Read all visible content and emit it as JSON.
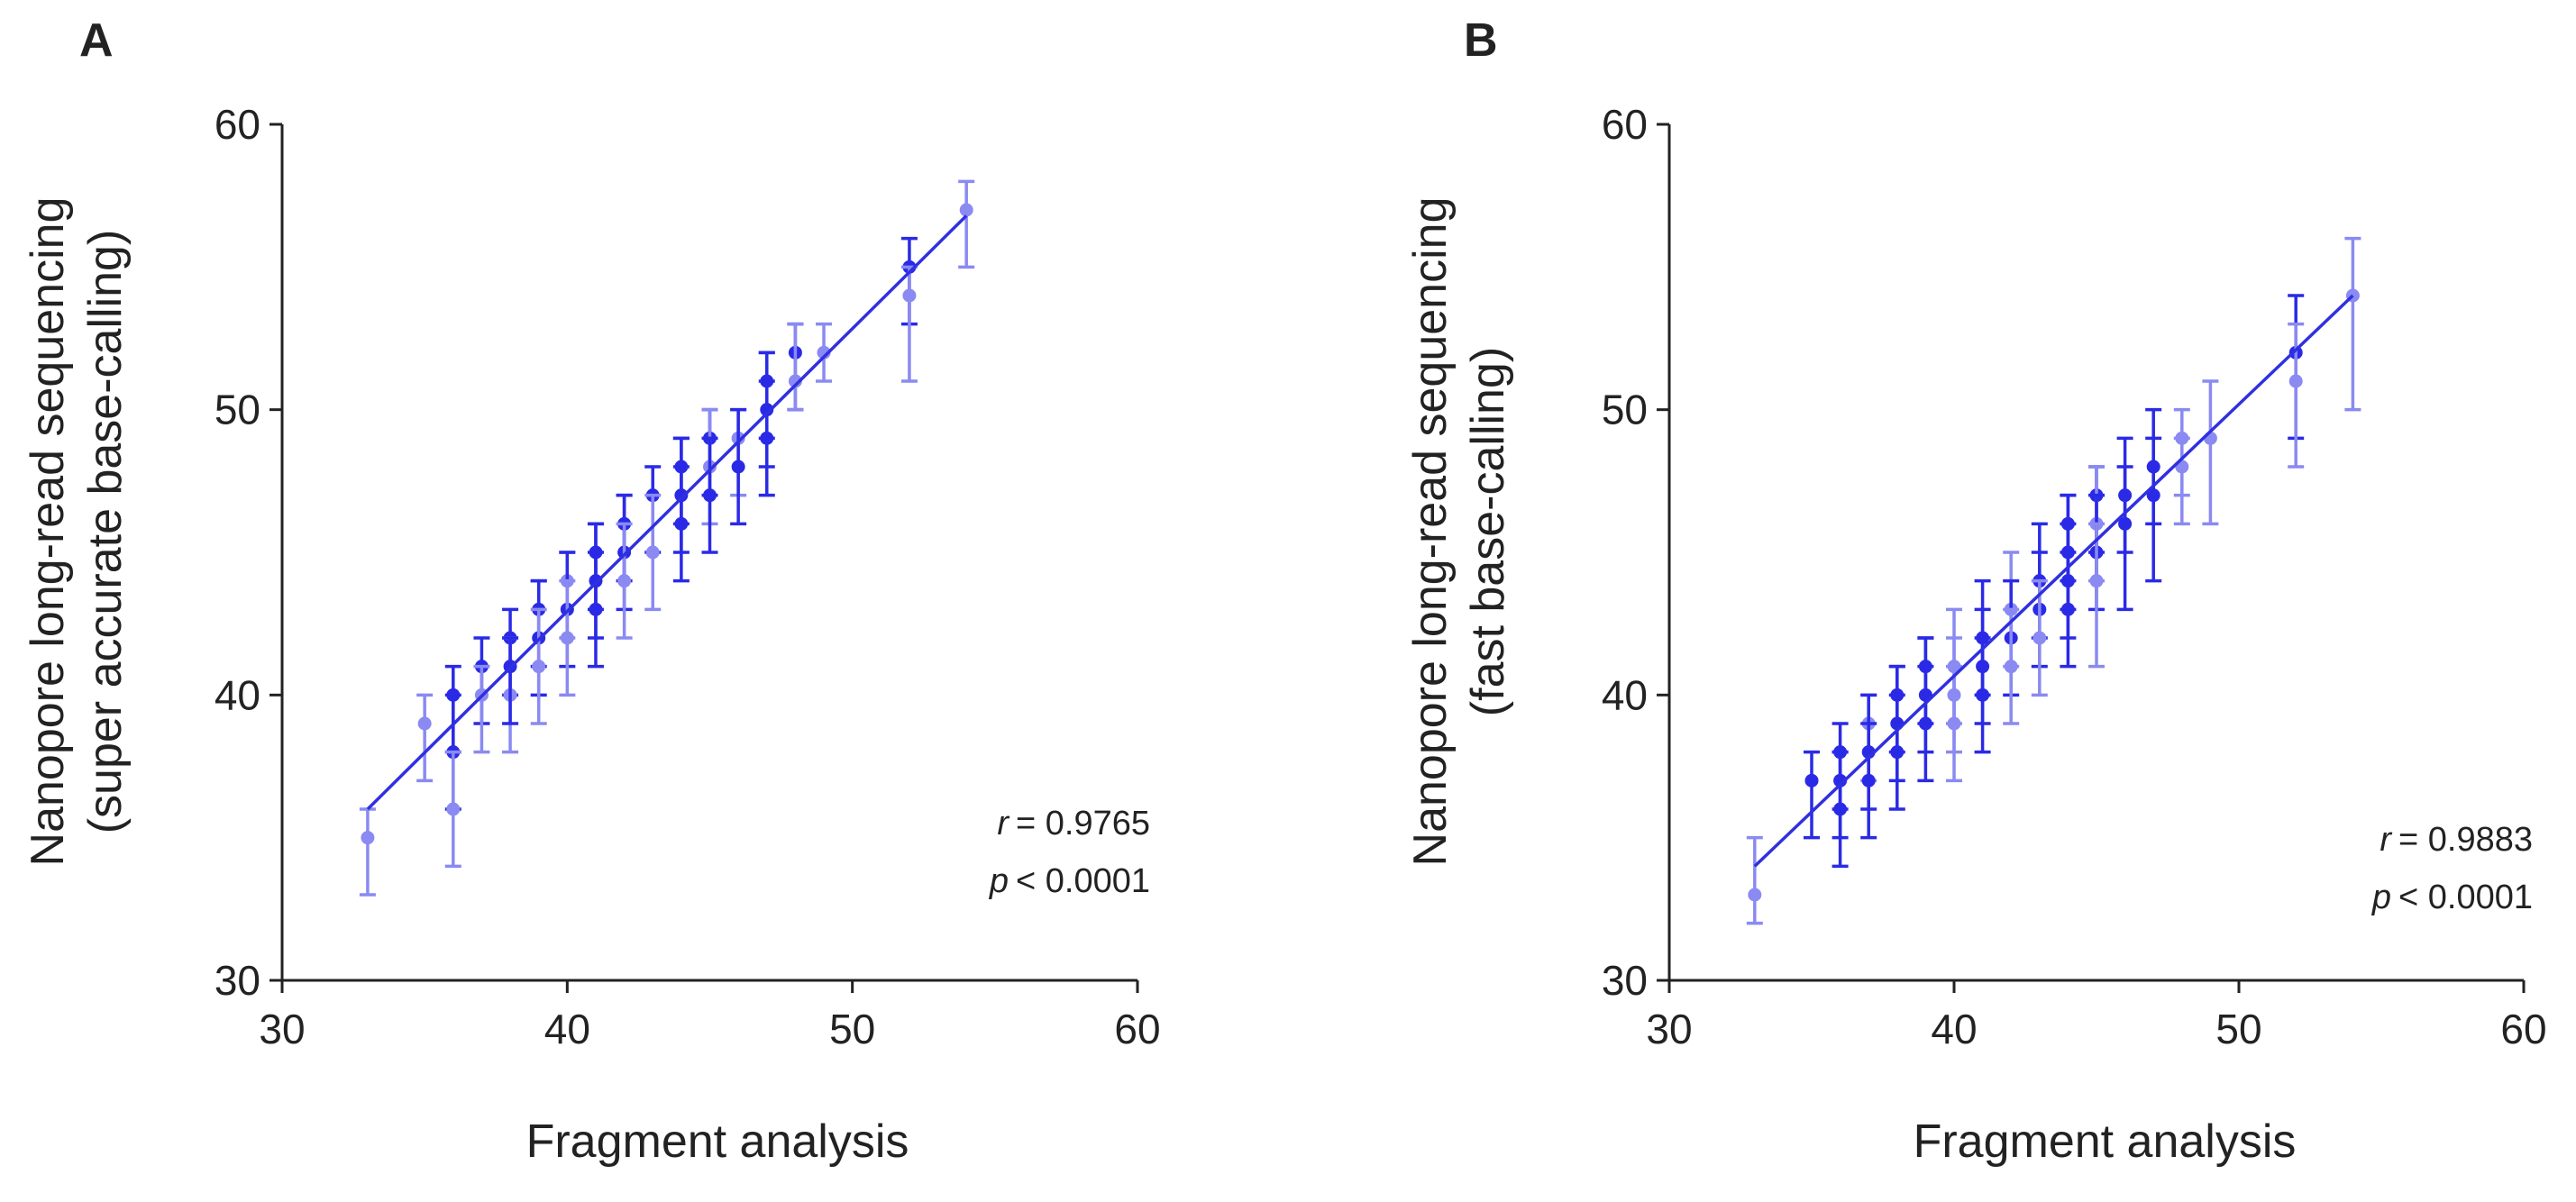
{
  "colors": {
    "point": "#2a2ae6",
    "point_light": "#8a8af2",
    "line": "#3030e0",
    "axis": "#222222"
  },
  "chart_data": [
    {
      "panel": "A",
      "type": "scatter",
      "xlabel": "Fragment analysis",
      "ylabel_lines": [
        "Nanopore long-read sequencing",
        "(super accurate base-calling)"
      ],
      "xlim": [
        30,
        60
      ],
      "ylim": [
        30,
        60
      ],
      "xticks": [
        30,
        40,
        50,
        60
      ],
      "yticks": [
        30,
        40,
        50,
        60
      ],
      "stats": {
        "r_label": "r",
        "r_value": "= 0.9765",
        "p_label": "p",
        "p_value": "< 0.0001"
      },
      "fit_line": {
        "x": [
          33,
          54
        ],
        "y": [
          36.0,
          56.8
        ]
      },
      "points": [
        {
          "x": 33,
          "y": 35,
          "lo": 33,
          "hi": 36,
          "light": true
        },
        {
          "x": 35,
          "y": 39,
          "lo": 37,
          "hi": 40,
          "light": true
        },
        {
          "x": 36,
          "y": 40,
          "lo": 38,
          "hi": 41,
          "light": false
        },
        {
          "x": 36,
          "y": 38,
          "lo": 36,
          "hi": 40,
          "light": false
        },
        {
          "x": 36,
          "y": 36,
          "lo": 34,
          "hi": 38,
          "light": true
        },
        {
          "x": 37,
          "y": 41,
          "lo": 39,
          "hi": 42,
          "light": false
        },
        {
          "x": 37,
          "y": 40,
          "lo": 38,
          "hi": 41,
          "light": true
        },
        {
          "x": 38,
          "y": 42,
          "lo": 40,
          "hi": 43,
          "light": false
        },
        {
          "x": 38,
          "y": 40,
          "lo": 38,
          "hi": 42,
          "light": true
        },
        {
          "x": 38,
          "y": 41,
          "lo": 39,
          "hi": 42,
          "light": false
        },
        {
          "x": 39,
          "y": 43,
          "lo": 41,
          "hi": 44,
          "light": false
        },
        {
          "x": 39,
          "y": 42,
          "lo": 40,
          "hi": 44,
          "light": false
        },
        {
          "x": 39,
          "y": 41,
          "lo": 39,
          "hi": 43,
          "light": true
        },
        {
          "x": 40,
          "y": 44,
          "lo": 42,
          "hi": 45,
          "light": true
        },
        {
          "x": 40,
          "y": 43,
          "lo": 41,
          "hi": 45,
          "light": false
        },
        {
          "x": 40,
          "y": 42,
          "lo": 40,
          "hi": 44,
          "light": true
        },
        {
          "x": 41,
          "y": 45,
          "lo": 43,
          "hi": 46,
          "light": false
        },
        {
          "x": 41,
          "y": 44,
          "lo": 42,
          "hi": 46,
          "light": false
        },
        {
          "x": 41,
          "y": 43,
          "lo": 41,
          "hi": 45,
          "light": false
        },
        {
          "x": 42,
          "y": 46,
          "lo": 44,
          "hi": 47,
          "light": false
        },
        {
          "x": 42,
          "y": 45,
          "lo": 43,
          "hi": 47,
          "light": false
        },
        {
          "x": 42,
          "y": 44,
          "lo": 42,
          "hi": 46,
          "light": true
        },
        {
          "x": 43,
          "y": 47,
          "lo": 45,
          "hi": 48,
          "light": false
        },
        {
          "x": 43,
          "y": 45,
          "lo": 43,
          "hi": 47,
          "light": true
        },
        {
          "x": 44,
          "y": 48,
          "lo": 46,
          "hi": 49,
          "light": false
        },
        {
          "x": 44,
          "y": 47,
          "lo": 45,
          "hi": 49,
          "light": false
        },
        {
          "x": 44,
          "y": 46,
          "lo": 44,
          "hi": 48,
          "light": false
        },
        {
          "x": 45,
          "y": 49,
          "lo": 47,
          "hi": 50,
          "light": false
        },
        {
          "x": 45,
          "y": 48,
          "lo": 46,
          "hi": 50,
          "light": true
        },
        {
          "x": 45,
          "y": 47,
          "lo": 45,
          "hi": 49,
          "light": false
        },
        {
          "x": 46,
          "y": 49,
          "lo": 47,
          "hi": 50,
          "light": true
        },
        {
          "x": 46,
          "y": 48,
          "lo": 46,
          "hi": 50,
          "light": false
        },
        {
          "x": 47,
          "y": 51,
          "lo": 49,
          "hi": 52,
          "light": false
        },
        {
          "x": 47,
          "y": 50,
          "lo": 48,
          "hi": 52,
          "light": false
        },
        {
          "x": 47,
          "y": 49,
          "lo": 47,
          "hi": 51,
          "light": false
        },
        {
          "x": 48,
          "y": 52,
          "lo": 50,
          "hi": 53,
          "light": false
        },
        {
          "x": 48,
          "y": 51,
          "lo": 50,
          "hi": 53,
          "light": true
        },
        {
          "x": 49,
          "y": 52,
          "lo": 51,
          "hi": 53,
          "light": true
        },
        {
          "x": 52,
          "y": 55,
          "lo": 53,
          "hi": 56,
          "light": false
        },
        {
          "x": 52,
          "y": 54,
          "lo": 51,
          "hi": 55,
          "light": true
        },
        {
          "x": 54,
          "y": 57,
          "lo": 55,
          "hi": 58,
          "light": true
        }
      ]
    },
    {
      "panel": "B",
      "type": "scatter",
      "xlabel": "Fragment analysis",
      "ylabel_lines": [
        "Nanopore long-read sequencing",
        "(fast base-calling)"
      ],
      "xlim": [
        30,
        60
      ],
      "ylim": [
        30,
        60
      ],
      "xticks": [
        30,
        40,
        50,
        60
      ],
      "yticks": [
        30,
        40,
        50,
        60
      ],
      "stats": {
        "r_label": "r",
        "r_value": "= 0.9883",
        "p_label": "p",
        "p_value": "< 0.0001"
      },
      "fit_line": {
        "x": [
          33,
          54
        ],
        "y": [
          34.0,
          54.0
        ]
      },
      "points": [
        {
          "x": 33,
          "y": 33,
          "lo": 32,
          "hi": 35,
          "light": true
        },
        {
          "x": 35,
          "y": 37,
          "lo": 35,
          "hi": 38,
          "light": false
        },
        {
          "x": 36,
          "y": 38,
          "lo": 36,
          "hi": 39,
          "light": false
        },
        {
          "x": 36,
          "y": 37,
          "lo": 35,
          "hi": 38,
          "light": false
        },
        {
          "x": 36,
          "y": 36,
          "lo": 34,
          "hi": 38,
          "light": false
        },
        {
          "x": 37,
          "y": 39,
          "lo": 37,
          "hi": 40,
          "light": true
        },
        {
          "x": 37,
          "y": 38,
          "lo": 36,
          "hi": 40,
          "light": false
        },
        {
          "x": 37,
          "y": 37,
          "lo": 35,
          "hi": 39,
          "light": false
        },
        {
          "x": 38,
          "y": 40,
          "lo": 38,
          "hi": 41,
          "light": false
        },
        {
          "x": 38,
          "y": 39,
          "lo": 37,
          "hi": 41,
          "light": false
        },
        {
          "x": 38,
          "y": 38,
          "lo": 36,
          "hi": 40,
          "light": false
        },
        {
          "x": 39,
          "y": 41,
          "lo": 39,
          "hi": 42,
          "light": false
        },
        {
          "x": 39,
          "y": 40,
          "lo": 38,
          "hi": 42,
          "light": false
        },
        {
          "x": 39,
          "y": 39,
          "lo": 37,
          "hi": 41,
          "light": false
        },
        {
          "x": 40,
          "y": 41,
          "lo": 39,
          "hi": 43,
          "light": true
        },
        {
          "x": 40,
          "y": 40,
          "lo": 38,
          "hi": 42,
          "light": true
        },
        {
          "x": 40,
          "y": 39,
          "lo": 37,
          "hi": 41,
          "light": true
        },
        {
          "x": 41,
          "y": 42,
          "lo": 40,
          "hi": 44,
          "light": false
        },
        {
          "x": 41,
          "y": 41,
          "lo": 39,
          "hi": 43,
          "light": false
        },
        {
          "x": 41,
          "y": 40,
          "lo": 38,
          "hi": 42,
          "light": false
        },
        {
          "x": 42,
          "y": 43,
          "lo": 41,
          "hi": 45,
          "light": true
        },
        {
          "x": 42,
          "y": 42,
          "lo": 40,
          "hi": 44,
          "light": false
        },
        {
          "x": 42,
          "y": 41,
          "lo": 39,
          "hi": 43,
          "light": true
        },
        {
          "x": 43,
          "y": 44,
          "lo": 42,
          "hi": 46,
          "light": false
        },
        {
          "x": 43,
          "y": 43,
          "lo": 41,
          "hi": 45,
          "light": false
        },
        {
          "x": 43,
          "y": 42,
          "lo": 40,
          "hi": 44,
          "light": true
        },
        {
          "x": 44,
          "y": 46,
          "lo": 44,
          "hi": 47,
          "light": false
        },
        {
          "x": 44,
          "y": 45,
          "lo": 43,
          "hi": 47,
          "light": false
        },
        {
          "x": 44,
          "y": 44,
          "lo": 42,
          "hi": 46,
          "light": false
        },
        {
          "x": 44,
          "y": 43,
          "lo": 41,
          "hi": 45,
          "light": false
        },
        {
          "x": 45,
          "y": 47,
          "lo": 45,
          "hi": 48,
          "light": false
        },
        {
          "x": 45,
          "y": 46,
          "lo": 44,
          "hi": 48,
          "light": true
        },
        {
          "x": 45,
          "y": 45,
          "lo": 43,
          "hi": 47,
          "light": false
        },
        {
          "x": 45,
          "y": 44,
          "lo": 41,
          "hi": 46,
          "light": true
        },
        {
          "x": 46,
          "y": 47,
          "lo": 45,
          "hi": 49,
          "light": false
        },
        {
          "x": 46,
          "y": 46,
          "lo": 43,
          "hi": 48,
          "light": false
        },
        {
          "x": 47,
          "y": 48,
          "lo": 46,
          "hi": 50,
          "light": false
        },
        {
          "x": 47,
          "y": 47,
          "lo": 44,
          "hi": 49,
          "light": false
        },
        {
          "x": 48,
          "y": 49,
          "lo": 47,
          "hi": 50,
          "light": true
        },
        {
          "x": 48,
          "y": 48,
          "lo": 46,
          "hi": 49,
          "light": true
        },
        {
          "x": 49,
          "y": 49,
          "lo": 46,
          "hi": 51,
          "light": true
        },
        {
          "x": 52,
          "y": 52,
          "lo": 49,
          "hi": 54,
          "light": false
        },
        {
          "x": 52,
          "y": 51,
          "lo": 48,
          "hi": 53,
          "light": true
        },
        {
          "x": 54,
          "y": 54,
          "lo": 50,
          "hi": 56,
          "light": true
        }
      ]
    }
  ]
}
